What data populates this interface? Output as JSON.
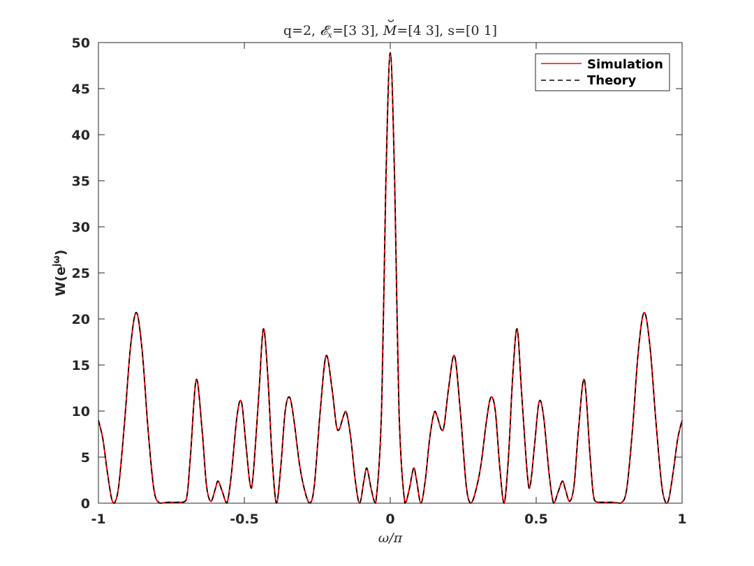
{
  "chart_data": {
    "type": "line",
    "title": "q=2, 𝓔x=[3 3], M̆=[4 3], s=[0 1]",
    "title_parts": {
      "prefix": "q=2, ",
      "e_symbol": "𝓔",
      "e_sub": "x",
      "e_value": "=[3 3], ",
      "m_symbol": "M",
      "m_value": "=[4 3], s=[0 1]"
    },
    "xlabel": "ω/π",
    "ylabel_base": "W(e",
    "ylabel_sup": "jω",
    "ylabel_end": ")",
    "xlim": [
      -1,
      1
    ],
    "ylim": [
      0,
      50
    ],
    "xticks": [
      -1,
      -0.5,
      0,
      0.5,
      1
    ],
    "xtick_labels": [
      "-1",
      "-0.5",
      "0",
      "0.5",
      "1"
    ],
    "yticks": [
      0,
      5,
      10,
      15,
      20,
      25,
      30,
      35,
      40,
      45,
      50
    ],
    "ytick_labels": [
      "0",
      "5",
      "10",
      "15",
      "20",
      "25",
      "30",
      "35",
      "40",
      "45",
      "50"
    ],
    "grid": false,
    "legend_position": "top-right",
    "series": [
      {
        "name": "Simulation",
        "color": "#ff0000",
        "style": "solid"
      },
      {
        "name": "Theory",
        "color": "#000000",
        "style": "dashed"
      }
    ],
    "points": [
      {
        "x": -1.0,
        "y": 9.0
      },
      {
        "x": -0.985,
        "y": 7.0
      },
      {
        "x": -0.97,
        "y": 3.5
      },
      {
        "x": -0.955,
        "y": 0.5
      },
      {
        "x": -0.945,
        "y": 0.0
      },
      {
        "x": -0.93,
        "y": 2.0
      },
      {
        "x": -0.91,
        "y": 9.0
      },
      {
        "x": -0.89,
        "y": 17.0
      },
      {
        "x": -0.87,
        "y": 20.7
      },
      {
        "x": -0.85,
        "y": 16.5
      },
      {
        "x": -0.83,
        "y": 8.0
      },
      {
        "x": -0.81,
        "y": 1.5
      },
      {
        "x": -0.79,
        "y": 0.0
      },
      {
        "x": -0.76,
        "y": 0.1
      },
      {
        "x": -0.73,
        "y": 0.1
      },
      {
        "x": -0.7,
        "y": 0.3
      },
      {
        "x": -0.685,
        "y": 5.0
      },
      {
        "x": -0.665,
        "y": 13.4
      },
      {
        "x": -0.645,
        "y": 8.0
      },
      {
        "x": -0.63,
        "y": 2.0
      },
      {
        "x": -0.615,
        "y": 0.2
      },
      {
        "x": -0.6,
        "y": 1.5
      },
      {
        "x": -0.59,
        "y": 2.4
      },
      {
        "x": -0.575,
        "y": 1.2
      },
      {
        "x": -0.56,
        "y": 0.0
      },
      {
        "x": -0.545,
        "y": 3.0
      },
      {
        "x": -0.525,
        "y": 9.5
      },
      {
        "x": -0.51,
        "y": 11.0
      },
      {
        "x": -0.495,
        "y": 6.5
      },
      {
        "x": -0.48,
        "y": 2.0
      },
      {
        "x": -0.47,
        "y": 3.0
      },
      {
        "x": -0.45,
        "y": 12.0
      },
      {
        "x": -0.435,
        "y": 18.9
      },
      {
        "x": -0.42,
        "y": 14.0
      },
      {
        "x": -0.405,
        "y": 5.0
      },
      {
        "x": -0.39,
        "y": 0.0
      },
      {
        "x": -0.375,
        "y": 4.0
      },
      {
        "x": -0.36,
        "y": 10.0
      },
      {
        "x": -0.345,
        "y": 11.5
      },
      {
        "x": -0.33,
        "y": 9.0
      },
      {
        "x": -0.31,
        "y": 4.0
      },
      {
        "x": -0.29,
        "y": 1.0
      },
      {
        "x": -0.275,
        "y": 0.0
      },
      {
        "x": -0.26,
        "y": 2.0
      },
      {
        "x": -0.24,
        "y": 10.0
      },
      {
        "x": -0.22,
        "y": 16.0
      },
      {
        "x": -0.2,
        "y": 12.5
      },
      {
        "x": -0.185,
        "y": 8.5
      },
      {
        "x": -0.175,
        "y": 8.0
      },
      {
        "x": -0.16,
        "y": 9.5
      },
      {
        "x": -0.15,
        "y": 9.8
      },
      {
        "x": -0.135,
        "y": 7.0
      },
      {
        "x": -0.12,
        "y": 2.5
      },
      {
        "x": -0.105,
        "y": 0.0
      },
      {
        "x": -0.09,
        "y": 2.5
      },
      {
        "x": -0.08,
        "y": 3.8
      },
      {
        "x": -0.065,
        "y": 1.5
      },
      {
        "x": -0.05,
        "y": 0.0
      },
      {
        "x": -0.03,
        "y": 10.0
      },
      {
        "x": -0.015,
        "y": 35.0
      },
      {
        "x": 0.0,
        "y": 48.9
      },
      {
        "x": 0.015,
        "y": 35.0
      },
      {
        "x": 0.03,
        "y": 10.0
      },
      {
        "x": 0.05,
        "y": 0.0
      },
      {
        "x": 0.065,
        "y": 1.5
      },
      {
        "x": 0.08,
        "y": 3.8
      },
      {
        "x": 0.09,
        "y": 2.5
      },
      {
        "x": 0.105,
        "y": 0.0
      },
      {
        "x": 0.12,
        "y": 2.5
      },
      {
        "x": 0.135,
        "y": 7.0
      },
      {
        "x": 0.15,
        "y": 9.8
      },
      {
        "x": 0.16,
        "y": 9.5
      },
      {
        "x": 0.175,
        "y": 8.0
      },
      {
        "x": 0.185,
        "y": 8.5
      },
      {
        "x": 0.2,
        "y": 12.5
      },
      {
        "x": 0.22,
        "y": 16.0
      },
      {
        "x": 0.24,
        "y": 10.0
      },
      {
        "x": 0.26,
        "y": 2.0
      },
      {
        "x": 0.275,
        "y": 0.0
      },
      {
        "x": 0.29,
        "y": 1.0
      },
      {
        "x": 0.31,
        "y": 4.0
      },
      {
        "x": 0.33,
        "y": 9.0
      },
      {
        "x": 0.345,
        "y": 11.5
      },
      {
        "x": 0.36,
        "y": 10.0
      },
      {
        "x": 0.375,
        "y": 4.0
      },
      {
        "x": 0.39,
        "y": 0.0
      },
      {
        "x": 0.405,
        "y": 5.0
      },
      {
        "x": 0.42,
        "y": 14.0
      },
      {
        "x": 0.435,
        "y": 18.9
      },
      {
        "x": 0.45,
        "y": 12.0
      },
      {
        "x": 0.47,
        "y": 3.0
      },
      {
        "x": 0.48,
        "y": 2.0
      },
      {
        "x": 0.495,
        "y": 6.5
      },
      {
        "x": 0.51,
        "y": 11.0
      },
      {
        "x": 0.525,
        "y": 9.5
      },
      {
        "x": 0.545,
        "y": 3.0
      },
      {
        "x": 0.56,
        "y": 0.0
      },
      {
        "x": 0.575,
        "y": 1.2
      },
      {
        "x": 0.59,
        "y": 2.4
      },
      {
        "x": 0.6,
        "y": 1.5
      },
      {
        "x": 0.615,
        "y": 0.2
      },
      {
        "x": 0.63,
        "y": 2.0
      },
      {
        "x": 0.645,
        "y": 8.0
      },
      {
        "x": 0.665,
        "y": 13.4
      },
      {
        "x": 0.685,
        "y": 5.0
      },
      {
        "x": 0.7,
        "y": 0.3
      },
      {
        "x": 0.73,
        "y": 0.1
      },
      {
        "x": 0.76,
        "y": 0.1
      },
      {
        "x": 0.79,
        "y": 0.0
      },
      {
        "x": 0.81,
        "y": 1.5
      },
      {
        "x": 0.83,
        "y": 8.0
      },
      {
        "x": 0.85,
        "y": 16.5
      },
      {
        "x": 0.87,
        "y": 20.7
      },
      {
        "x": 0.89,
        "y": 17.0
      },
      {
        "x": 0.91,
        "y": 9.0
      },
      {
        "x": 0.93,
        "y": 2.0
      },
      {
        "x": 0.945,
        "y": 0.0
      },
      {
        "x": 0.955,
        "y": 0.5
      },
      {
        "x": 0.97,
        "y": 3.5
      },
      {
        "x": 0.985,
        "y": 7.0
      },
      {
        "x": 1.0,
        "y": 9.0
      }
    ]
  }
}
